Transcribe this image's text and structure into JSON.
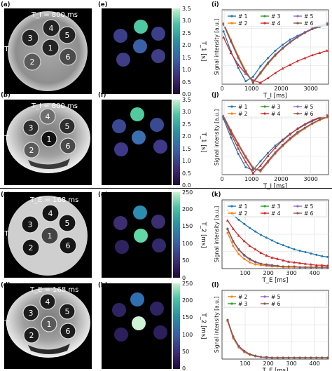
{
  "panels": {
    "a": "(a)",
    "b": "(b)",
    "c": "(c)",
    "d": "(d)",
    "e": "(e)",
    "f": "(f)",
    "g": "(g)",
    "h": "(h)",
    "i": "(i)",
    "j": "(j)",
    "k": "(k)",
    "l": "(l)"
  },
  "field_labels": {
    "row1": "3T",
    "row2": "7T",
    "row3": "3T",
    "row4": "7T"
  },
  "mri_overlays": {
    "a": "T_I = 800 ms",
    "b": "T_I = 800 ms",
    "c": "T_E = 168 ms",
    "d": "T_E = 168 ms"
  },
  "vial_numbers": [
    "4",
    "3",
    "5",
    "1",
    "2",
    "6"
  ],
  "colorbars": {
    "t1": {
      "ylabel": "T_1 [s]",
      "ticks": [
        "3.5",
        "3.0",
        "2.5",
        "2.0",
        "1.5",
        "1.0",
        "0.5",
        "0.0"
      ]
    },
    "t2": {
      "ylabel": "T_2 [ms]",
      "ticks": [
        "250",
        "200",
        "150",
        "100",
        "50",
        "0"
      ]
    }
  },
  "colors": {
    "series_1": "#1f77b4",
    "series_2": "#ff7f0e",
    "series_3": "#2ca02c",
    "series_4": "#d62728",
    "series_5": "#9467bd",
    "series_6": "#8c564b"
  },
  "chart_data": [
    {
      "panel": "(i)",
      "type": "line",
      "xlabel": "T_I [ms]",
      "ylabel": "Signal intensity [a.u.]",
      "xlim": [
        0,
        3600
      ],
      "ylim": [
        0,
        1
      ],
      "xticks": [
        "0",
        "1000",
        "2000",
        "3000"
      ],
      "grid": true,
      "legend": "top, 3 columns",
      "x": [
        50,
        300,
        550,
        800,
        1050,
        1300,
        1550,
        1800,
        2050,
        2300,
        2550,
        2800,
        3050,
        3300,
        3550
      ],
      "series": [
        {
          "name": "# 1",
          "color": "#1f77b4",
          "values": [
            0.71,
            0.44,
            0.22,
            0.04,
            0.1,
            0.24,
            0.35,
            0.45,
            0.53,
            0.6,
            0.65,
            0.7,
            0.74,
            0.77,
            0.8
          ]
        },
        {
          "name": "# 2",
          "color": "#ff7f0e",
          "values": [
            0.82,
            0.6,
            0.38,
            0.18,
            0.02,
            0.14,
            0.27,
            0.38,
            0.48,
            0.56,
            0.63,
            0.69,
            0.74,
            0.78,
            0.82
          ]
        },
        {
          "name": "# 3",
          "color": "#2ca02c",
          "values": [
            0.81,
            0.58,
            0.36,
            0.16,
            0.03,
            0.15,
            0.28,
            0.39,
            0.48,
            0.56,
            0.63,
            0.69,
            0.74,
            0.78,
            0.81
          ]
        },
        {
          "name": "# 4",
          "color": "#d62728",
          "values": [
            0.63,
            0.42,
            0.26,
            0.14,
            0.05,
            0.02,
            0.08,
            0.15,
            0.21,
            0.26,
            0.31,
            0.35,
            0.39,
            0.42,
            0.45
          ]
        },
        {
          "name": "# 5",
          "color": "#9467bd",
          "values": [
            0.8,
            0.57,
            0.35,
            0.15,
            0.03,
            0.16,
            0.29,
            0.4,
            0.49,
            0.57,
            0.64,
            0.7,
            0.75,
            0.79,
            0.82
          ]
        },
        {
          "name": "# 6",
          "color": "#8c564b",
          "values": [
            0.81,
            0.58,
            0.36,
            0.17,
            0.02,
            0.15,
            0.28,
            0.39,
            0.48,
            0.56,
            0.63,
            0.69,
            0.74,
            0.78,
            0.81
          ]
        }
      ]
    },
    {
      "panel": "(j)",
      "type": "line",
      "xlabel": "T_I [ms]",
      "ylabel": "Signal intensity [a.u.]",
      "xlim": [
        0,
        3600
      ],
      "ylim": [
        0,
        1
      ],
      "xticks": [
        "0",
        "1000",
        "2000",
        "3000"
      ],
      "grid": true,
      "legend": "top, 3 columns",
      "x": [
        50,
        300,
        550,
        800,
        1050,
        1300,
        1550,
        1800,
        2050,
        2300,
        2550,
        2800,
        3050,
        3300,
        3550
      ],
      "series": [
        {
          "name": "# 1",
          "color": "#1f77b4",
          "values": [
            0.75,
            0.5,
            0.28,
            0.1,
            0.06,
            0.18,
            0.29,
            0.39,
            0.47,
            0.55,
            0.61,
            0.67,
            0.72,
            0.76,
            0.79
          ]
        },
        {
          "name": "# 2",
          "color": "#ff7f0e",
          "values": [
            0.79,
            0.6,
            0.42,
            0.25,
            0.1,
            0.04,
            0.16,
            0.28,
            0.38,
            0.47,
            0.55,
            0.62,
            0.68,
            0.73,
            0.77
          ]
        },
        {
          "name": "# 3",
          "color": "#2ca02c",
          "values": [
            0.78,
            0.58,
            0.4,
            0.23,
            0.08,
            0.06,
            0.18,
            0.3,
            0.4,
            0.49,
            0.57,
            0.63,
            0.69,
            0.74,
            0.78
          ]
        },
        {
          "name": "# 4",
          "color": "#d62728",
          "values": [
            0.78,
            0.55,
            0.35,
            0.17,
            0.02,
            0.12,
            0.25,
            0.36,
            0.46,
            0.54,
            0.62,
            0.68,
            0.73,
            0.77,
            0.8
          ]
        },
        {
          "name": "# 5",
          "color": "#9467bd",
          "values": [
            0.79,
            0.59,
            0.41,
            0.24,
            0.09,
            0.05,
            0.17,
            0.29,
            0.39,
            0.48,
            0.56,
            0.63,
            0.69,
            0.74,
            0.78
          ]
        },
        {
          "name": "# 6",
          "color": "#8c564b",
          "values": [
            0.78,
            0.58,
            0.4,
            0.23,
            0.08,
            0.06,
            0.18,
            0.3,
            0.4,
            0.49,
            0.57,
            0.63,
            0.69,
            0.74,
            0.78
          ]
        }
      ]
    },
    {
      "panel": "(k)",
      "type": "line",
      "xlabel": "T_E [ms]",
      "ylabel": "Signal intensity [a.u.]",
      "xlim": [
        0,
        460
      ],
      "ylim": [
        0,
        1
      ],
      "xticks": [
        "100",
        "200",
        "300",
        "400"
      ],
      "grid": true,
      "legend": "top, 3 columns",
      "x": [
        24,
        48,
        72,
        96,
        120,
        144,
        168,
        192,
        216,
        240,
        264,
        288,
        312,
        336,
        360,
        384,
        408,
        432,
        456
      ],
      "series": [
        {
          "name": "# 1",
          "color": "#1f77b4",
          "values": [
            0.85,
            0.78,
            0.71,
            0.65,
            0.59,
            0.54,
            0.49,
            0.45,
            0.41,
            0.37,
            0.34,
            0.31,
            0.28,
            0.26,
            0.24,
            0.22,
            0.2,
            0.18,
            0.17
          ]
        },
        {
          "name": "# 2",
          "color": "#ff7f0e",
          "values": [
            0.52,
            0.33,
            0.21,
            0.14,
            0.09,
            0.06,
            0.05,
            0.04,
            0.03,
            0.03,
            0.02,
            0.02,
            0.02,
            0.02,
            0.02,
            0.02,
            0.02,
            0.02,
            0.02
          ]
        },
        {
          "name": "# 3",
          "color": "#2ca02c",
          "values": [
            0.58,
            0.4,
            0.28,
            0.19,
            0.14,
            0.1,
            0.07,
            0.06,
            0.05,
            0.04,
            0.03,
            0.03,
            0.03,
            0.02,
            0.02,
            0.02,
            0.02,
            0.02,
            0.02
          ]
        },
        {
          "name": "# 4",
          "color": "#d62728",
          "values": [
            0.7,
            0.58,
            0.48,
            0.4,
            0.33,
            0.28,
            0.23,
            0.19,
            0.16,
            0.14,
            0.12,
            0.1,
            0.09,
            0.08,
            0.07,
            0.06,
            0.05,
            0.05,
            0.04
          ]
        },
        {
          "name": "# 5",
          "color": "#9467bd",
          "values": [
            0.57,
            0.39,
            0.27,
            0.19,
            0.13,
            0.09,
            0.07,
            0.05,
            0.04,
            0.04,
            0.03,
            0.03,
            0.03,
            0.02,
            0.02,
            0.02,
            0.02,
            0.02,
            0.02
          ]
        },
        {
          "name": "# 6",
          "color": "#8c564b",
          "values": [
            0.58,
            0.4,
            0.28,
            0.2,
            0.14,
            0.1,
            0.07,
            0.06,
            0.05,
            0.04,
            0.03,
            0.03,
            0.03,
            0.02,
            0.02,
            0.02,
            0.02,
            0.02,
            0.02
          ]
        }
      ]
    },
    {
      "panel": "(l)",
      "type": "line",
      "xlabel": "T_E [ms]",
      "ylabel": "Signal intensity [a.u.]",
      "xlim": [
        0,
        460
      ],
      "ylim": [
        0,
        1
      ],
      "xticks": [
        "100",
        "200",
        "300",
        "400"
      ],
      "grid": true,
      "legend": "top, 3 columns",
      "x": [
        24,
        48,
        72,
        96,
        120,
        144,
        168,
        192,
        216,
        240,
        264,
        288,
        312,
        336,
        360,
        384,
        408,
        432,
        456
      ],
      "series": [
        {
          "name": "# 2",
          "color": "#ff7f0e",
          "values": [
            0.55,
            0.3,
            0.17,
            0.1,
            0.06,
            0.04,
            0.03,
            0.02,
            0.02,
            0.02,
            0.02,
            0.02,
            0.02,
            0.02,
            0.02,
            0.02,
            0.02,
            0.02,
            0.02
          ]
        },
        {
          "name": "# 3",
          "color": "#2ca02c",
          "values": [
            0.57,
            0.33,
            0.19,
            0.11,
            0.07,
            0.05,
            0.03,
            0.03,
            0.02,
            0.02,
            0.02,
            0.02,
            0.02,
            0.02,
            0.02,
            0.02,
            0.02,
            0.02,
            0.02
          ]
        },
        {
          "name": "# 5",
          "color": "#9467bd",
          "values": [
            0.56,
            0.32,
            0.18,
            0.11,
            0.07,
            0.04,
            0.03,
            0.02,
            0.02,
            0.02,
            0.02,
            0.02,
            0.02,
            0.02,
            0.02,
            0.02,
            0.02,
            0.02,
            0.02
          ]
        },
        {
          "name": "# 6",
          "color": "#8c564b",
          "values": [
            0.57,
            0.33,
            0.19,
            0.12,
            0.07,
            0.05,
            0.03,
            0.03,
            0.02,
            0.02,
            0.02,
            0.02,
            0.02,
            0.02,
            0.02,
            0.02,
            0.02,
            0.02,
            0.02
          ]
        }
      ]
    }
  ]
}
